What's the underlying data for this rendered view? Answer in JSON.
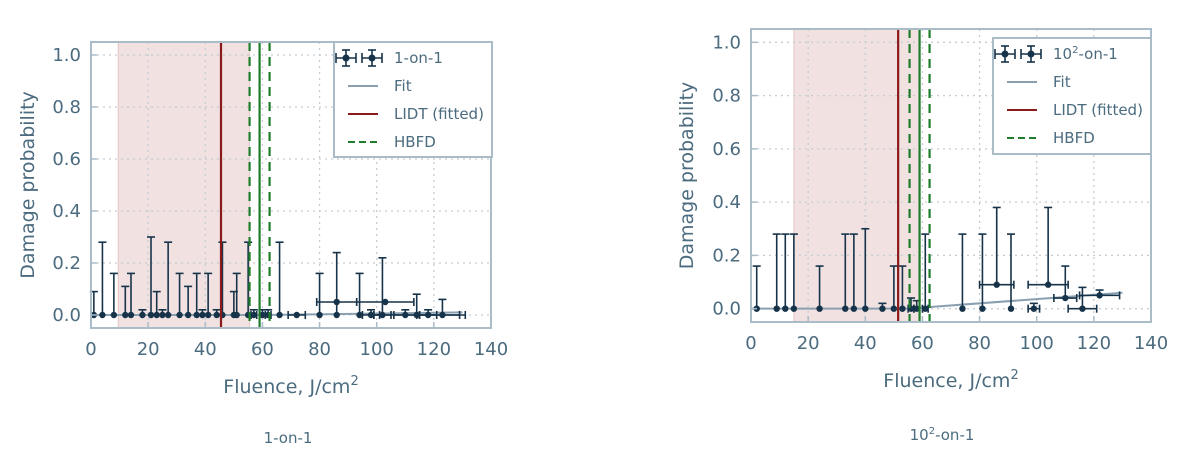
{
  "chart_data": [
    {
      "type": "scatter",
      "caption": "1-on-1",
      "xlabel": "Fluence, J/cm",
      "xlabel_sup": "2",
      "ylabel": "Damage probability",
      "xlim": [
        0,
        140
      ],
      "ylim": [
        -0.05,
        1.05
      ],
      "xticks": [
        0,
        20,
        40,
        60,
        80,
        100,
        120,
        140
      ],
      "yticks": [
        0.0,
        0.2,
        0.4,
        0.6,
        0.8,
        1.0
      ],
      "ytick_labels": [
        "0.0",
        "0.2",
        "0.4",
        "0.6",
        "0.8",
        "1.0"
      ],
      "grid": true,
      "legend_position": "top-right",
      "legend": {
        "data": {
          "label": "1-on-1",
          "sup": "",
          "suffix": ""
        },
        "fit": "Fit",
        "lidt": "LIDT (fitted)",
        "hbfd": "HBFD"
      },
      "shaded_region": [
        9.5,
        55.5
      ],
      "lidt": 45.5,
      "hbfd": {
        "center": 59,
        "low": 55.5,
        "high": 62.5
      },
      "fit": {
        "x": [
          0,
          60,
          130
        ],
        "y": [
          0,
          0,
          0.01
        ]
      },
      "points": [
        {
          "x": 1,
          "y": 0,
          "yerr_up": 0.09,
          "xerr": 0
        },
        {
          "x": 4,
          "y": 0,
          "yerr_up": 0.28,
          "xerr": 0
        },
        {
          "x": 8,
          "y": 0,
          "yerr_up": 0.16,
          "xerr": 0
        },
        {
          "x": 12,
          "y": 0,
          "yerr_up": 0.11,
          "xerr": 0
        },
        {
          "x": 14,
          "y": 0,
          "yerr_up": 0.16,
          "xerr": 0
        },
        {
          "x": 18,
          "y": 0,
          "yerr_up": 0.02,
          "xerr": 0
        },
        {
          "x": 21,
          "y": 0,
          "yerr_up": 0.3,
          "xerr": 0
        },
        {
          "x": 23,
          "y": 0,
          "yerr_up": 0.09,
          "xerr": 0
        },
        {
          "x": 25,
          "y": 0,
          "yerr_up": 0.02,
          "xerr": 0
        },
        {
          "x": 27,
          "y": 0,
          "yerr_up": 0.28,
          "xerr": 0
        },
        {
          "x": 31,
          "y": 0,
          "yerr_up": 0.16,
          "xerr": 0
        },
        {
          "x": 34,
          "y": 0,
          "yerr_up": 0.11,
          "xerr": 0
        },
        {
          "x": 37,
          "y": 0,
          "yerr_up": 0.16,
          "xerr": 0
        },
        {
          "x": 39,
          "y": 0,
          "yerr_up": 0.02,
          "xerr": 0
        },
        {
          "x": 41,
          "y": 0,
          "yerr_up": 0.16,
          "xerr": 0
        },
        {
          "x": 44,
          "y": 0,
          "yerr_up": 0.02,
          "xerr": 0
        },
        {
          "x": 46,
          "y": 0,
          "yerr_up": 0.28,
          "xerr": 0
        },
        {
          "x": 50,
          "y": 0,
          "yerr_up": 0.09,
          "xerr": 0
        },
        {
          "x": 51,
          "y": 0,
          "yerr_up": 0.16,
          "xerr": 0
        },
        {
          "x": 55,
          "y": 0,
          "yerr_up": 0.28,
          "xerr": 0
        },
        {
          "x": 57,
          "y": 0,
          "yerr_up": 0.02,
          "xerr": 1
        },
        {
          "x": 60,
          "y": 0,
          "yerr_up": 0.02,
          "xerr": 1
        },
        {
          "x": 62,
          "y": 0,
          "yerr_up": 0.02,
          "xerr": 1
        },
        {
          "x": 66,
          "y": 0,
          "yerr_up": 0.28,
          "xerr": 0
        },
        {
          "x": 72,
          "y": 0,
          "yerr_up": 0,
          "xerr": 3
        },
        {
          "x": 80,
          "y": 0,
          "yerr_up": 0.16,
          "xerr": 0
        },
        {
          "x": 86,
          "y": 0,
          "yerr_up": 0.24,
          "xerr": 0
        },
        {
          "x": 86,
          "y": 0.05,
          "yerr_up": 0,
          "xerr": 7
        },
        {
          "x": 94,
          "y": 0,
          "yerr_up": 0.16,
          "xerr": 0
        },
        {
          "x": 98,
          "y": 0,
          "yerr_up": 0.02,
          "xerr": 3
        },
        {
          "x": 102,
          "y": 0,
          "yerr_up": 0.22,
          "xerr": 3
        },
        {
          "x": 103,
          "y": 0.05,
          "yerr_up": 0,
          "xerr": 10
        },
        {
          "x": 110,
          "y": 0,
          "yerr_up": 0.02,
          "xerr": 4
        },
        {
          "x": 114,
          "y": 0,
          "yerr_up": 0.08,
          "xerr": 15
        },
        {
          "x": 118,
          "y": 0,
          "yerr_up": 0.02,
          "xerr": 3
        },
        {
          "x": 123,
          "y": 0,
          "yerr_up": 0.06,
          "xerr": 8
        }
      ]
    },
    {
      "type": "scatter",
      "caption": "10",
      "caption_sup": "2",
      "caption_suffix": "-on-1",
      "xlabel": "Fluence, J/cm",
      "xlabel_sup": "2",
      "ylabel": "Damage probability",
      "xlim": [
        0,
        140
      ],
      "ylim": [
        -0.05,
        1.05
      ],
      "xticks": [
        0,
        20,
        40,
        60,
        80,
        100,
        120,
        140
      ],
      "yticks": [
        0.0,
        0.2,
        0.4,
        0.6,
        0.8,
        1.0
      ],
      "ytick_labels": [
        "0.0",
        "0.2",
        "0.4",
        "0.6",
        "0.8",
        "1.0"
      ],
      "grid": true,
      "legend_position": "top-right",
      "legend": {
        "data": {
          "label": "10",
          "sup": "2",
          "suffix": "-on-1"
        },
        "fit": "Fit",
        "lidt": "LIDT (fitted)",
        "hbfd": "HBFD"
      },
      "shaded_region": [
        15,
        59
      ],
      "lidt": 51.5,
      "hbfd": {
        "center": 59,
        "low": 55.5,
        "high": 62.5
      },
      "fit": {
        "x": [
          0,
          55,
          130
        ],
        "y": [
          0,
          0,
          0.06
        ]
      },
      "points": [
        {
          "x": 2,
          "y": 0,
          "yerr_up": 0.16,
          "xerr": 0
        },
        {
          "x": 9,
          "y": 0,
          "yerr_up": 0.28,
          "xerr": 0
        },
        {
          "x": 12,
          "y": 0,
          "yerr_up": 0.28,
          "xerr": 0
        },
        {
          "x": 15,
          "y": 0,
          "yerr_up": 0.28,
          "xerr": 0
        },
        {
          "x": 24,
          "y": 0,
          "yerr_up": 0.16,
          "xerr": 0
        },
        {
          "x": 33,
          "y": 0,
          "yerr_up": 0.28,
          "xerr": 0
        },
        {
          "x": 36,
          "y": 0,
          "yerr_up": 0.28,
          "xerr": 0
        },
        {
          "x": 40,
          "y": 0,
          "yerr_up": 0.3,
          "xerr": 0
        },
        {
          "x": 46,
          "y": 0,
          "yerr_up": 0.02,
          "xerr": 0
        },
        {
          "x": 50,
          "y": 0,
          "yerr_up": 0.16,
          "xerr": 0
        },
        {
          "x": 53,
          "y": 0,
          "yerr_up": 0.16,
          "xerr": 0
        },
        {
          "x": 56,
          "y": 0,
          "yerr_up": 0.04,
          "xerr": 1
        },
        {
          "x": 58,
          "y": 0,
          "yerr_up": 0.03,
          "xerr": 1
        },
        {
          "x": 61,
          "y": 0,
          "yerr_up": 0.28,
          "xerr": 1
        },
        {
          "x": 74,
          "y": 0,
          "yerr_up": 0.28,
          "xerr": 0
        },
        {
          "x": 81,
          "y": 0,
          "yerr_up": 0.28,
          "xerr": 0
        },
        {
          "x": 86,
          "y": 0.09,
          "yerr_up": 0.29,
          "xerr": 6
        },
        {
          "x": 91,
          "y": 0,
          "yerr_up": 0.28,
          "xerr": 0
        },
        {
          "x": 99,
          "y": 0,
          "yerr_up": 0.02,
          "xerr": 2
        },
        {
          "x": 104,
          "y": 0.09,
          "yerr_up": 0.29,
          "xerr": 7
        },
        {
          "x": 110,
          "y": 0.04,
          "yerr_up": 0.12,
          "xerr": 4
        },
        {
          "x": 116,
          "y": 0,
          "yerr_up": 0.08,
          "xerr": 5
        },
        {
          "x": 122,
          "y": 0.05,
          "yerr_up": 0.02,
          "xerr": 7
        }
      ]
    }
  ]
}
